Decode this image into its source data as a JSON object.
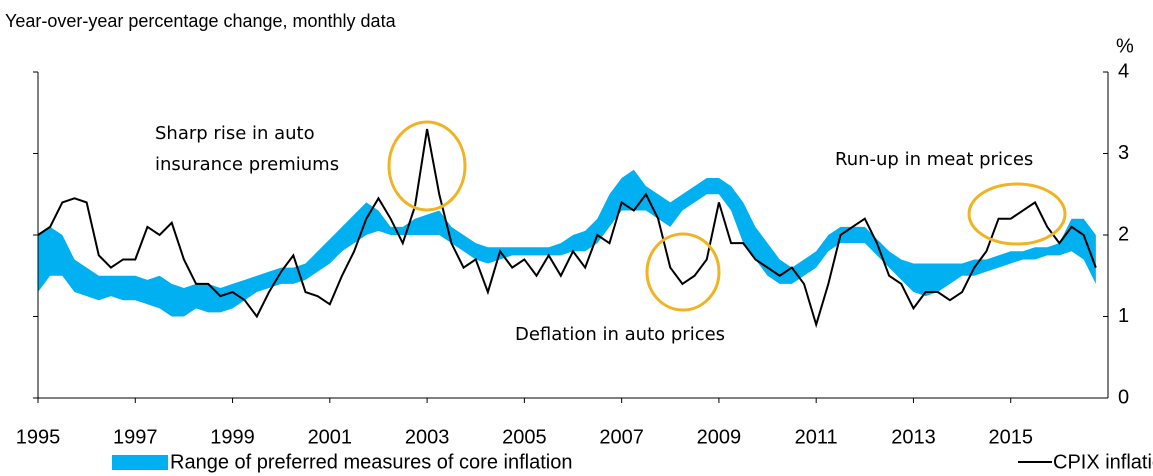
{
  "chart_data": {
    "type": "line",
    "title": "Year-over-year percentage change, monthly data",
    "y_axis_label": "%",
    "x": [
      1995,
      1995.25,
      1995.5,
      1995.75,
      1996,
      1996.25,
      1996.5,
      1996.75,
      1997,
      1997.25,
      1997.5,
      1997.75,
      1998,
      1998.25,
      1998.5,
      1998.75,
      1999,
      1999.25,
      1999.5,
      1999.75,
      2000,
      2000.25,
      2000.5,
      2000.75,
      2001,
      2001.25,
      2001.5,
      2001.75,
      2002,
      2002.25,
      2002.5,
      2002.75,
      2003,
      2003.25,
      2003.5,
      2003.75,
      2004,
      2004.25,
      2004.5,
      2004.75,
      2005,
      2005.25,
      2005.5,
      2005.75,
      2006,
      2006.25,
      2006.5,
      2006.75,
      2007,
      2007.25,
      2007.5,
      2007.75,
      2008,
      2008.25,
      2008.5,
      2008.75,
      2009,
      2009.25,
      2009.5,
      2009.75,
      2010,
      2010.25,
      2010.5,
      2010.75,
      2011,
      2011.25,
      2011.5,
      2011.75,
      2012,
      2012.25,
      2012.5,
      2012.75,
      2013,
      2013.25,
      2013.5,
      2013.75,
      2014,
      2014.25,
      2014.5,
      2014.75,
      2015,
      2015.25,
      2015.5,
      2015.75,
      2016,
      2016.25,
      2016.5,
      2016.75
    ],
    "series": [
      {
        "name": "Range of preferred measures of core inflation",
        "color": "#00b0f0",
        "low": [
          1.3,
          1.5,
          1.5,
          1.3,
          1.25,
          1.2,
          1.25,
          1.2,
          1.2,
          1.15,
          1.1,
          1.0,
          1.0,
          1.1,
          1.05,
          1.05,
          1.1,
          1.2,
          1.3,
          1.35,
          1.4,
          1.4,
          1.45,
          1.55,
          1.65,
          1.8,
          1.9,
          2.0,
          2.05,
          2.0,
          2.0,
          2.0,
          2.0,
          2.0,
          1.9,
          1.8,
          1.7,
          1.65,
          1.7,
          1.75,
          1.75,
          1.75,
          1.75,
          1.75,
          1.8,
          1.8,
          1.9,
          2.1,
          2.3,
          2.3,
          2.3,
          2.2,
          2.1,
          2.3,
          2.4,
          2.5,
          2.5,
          2.3,
          1.9,
          1.7,
          1.5,
          1.4,
          1.4,
          1.5,
          1.6,
          1.8,
          1.9,
          1.9,
          1.9,
          1.75,
          1.6,
          1.45,
          1.3,
          1.25,
          1.3,
          1.4,
          1.5,
          1.5,
          1.55,
          1.6,
          1.65,
          1.7,
          1.7,
          1.75,
          1.75,
          1.8,
          1.7,
          1.4
        ],
        "high": [
          2.0,
          2.1,
          2.0,
          1.7,
          1.6,
          1.5,
          1.5,
          1.5,
          1.5,
          1.45,
          1.5,
          1.4,
          1.35,
          1.4,
          1.4,
          1.35,
          1.4,
          1.45,
          1.5,
          1.55,
          1.6,
          1.6,
          1.65,
          1.8,
          1.95,
          2.1,
          2.25,
          2.4,
          2.3,
          2.1,
          2.1,
          2.2,
          2.25,
          2.3,
          2.1,
          2.0,
          1.9,
          1.85,
          1.85,
          1.85,
          1.85,
          1.85,
          1.85,
          1.9,
          2.0,
          2.05,
          2.2,
          2.5,
          2.7,
          2.8,
          2.6,
          2.5,
          2.4,
          2.5,
          2.6,
          2.7,
          2.7,
          2.6,
          2.4,
          2.1,
          1.9,
          1.7,
          1.6,
          1.7,
          1.8,
          2.0,
          2.1,
          2.1,
          2.1,
          1.95,
          1.8,
          1.7,
          1.65,
          1.65,
          1.65,
          1.65,
          1.65,
          1.7,
          1.7,
          1.75,
          1.8,
          1.8,
          1.85,
          1.85,
          1.9,
          2.2,
          2.2,
          2.0
        ]
      },
      {
        "name": "CPIX inflation",
        "color": "#000000",
        "values": [
          2.0,
          2.1,
          2.4,
          2.45,
          2.4,
          1.75,
          1.6,
          1.7,
          1.7,
          2.1,
          2.0,
          2.15,
          1.7,
          1.4,
          1.4,
          1.25,
          1.3,
          1.2,
          1.0,
          1.3,
          1.55,
          1.75,
          1.3,
          1.25,
          1.15,
          1.5,
          1.8,
          2.2,
          2.45,
          2.2,
          1.9,
          2.35,
          3.3,
          2.5,
          1.9,
          1.6,
          1.7,
          1.3,
          1.8,
          1.6,
          1.7,
          1.5,
          1.75,
          1.5,
          1.8,
          1.6,
          2.0,
          1.9,
          2.4,
          2.3,
          2.5,
          2.2,
          1.6,
          1.4,
          1.5,
          1.7,
          2.4,
          1.9,
          1.9,
          1.7,
          1.6,
          1.5,
          1.6,
          1.4,
          0.9,
          1.4,
          2.0,
          2.1,
          2.2,
          1.9,
          1.5,
          1.4,
          1.1,
          1.3,
          1.3,
          1.2,
          1.3,
          1.6,
          1.8,
          2.2,
          2.2,
          2.3,
          2.4,
          2.1,
          1.9,
          2.1,
          2.0,
          1.6
        ]
      }
    ],
    "xlim": [
      1995,
      2017
    ],
    "xticks": [
      1995,
      1997,
      1999,
      2001,
      2003,
      2005,
      2007,
      2009,
      2011,
      2013,
      2015
    ],
    "ylim": [
      0,
      4
    ],
    "yticks": [
      0,
      1,
      2,
      3,
      4
    ],
    "annotations": [
      "Sharp rise in auto",
      "insurance premiums",
      "Run-up in meat prices",
      "Deflation in auto prices"
    ]
  }
}
